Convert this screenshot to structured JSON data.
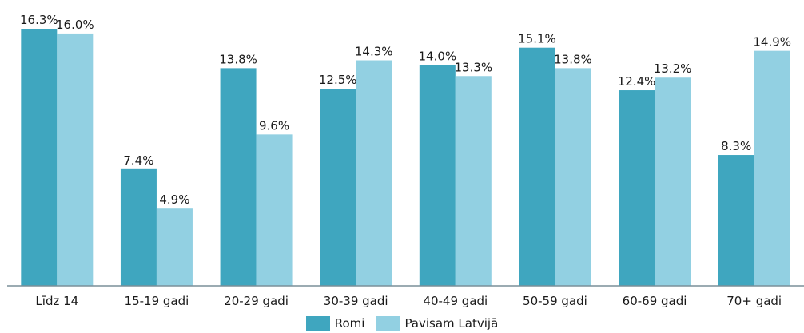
{
  "chart_data": {
    "type": "bar",
    "categories": [
      "Līdz 14",
      "15-19 gadi",
      "20-29 gadi",
      "30-39 gadi",
      "40-49 gadi",
      "50-59 gadi",
      "60-69 gadi",
      "70+ gadi"
    ],
    "series": [
      {
        "name": "Romi",
        "values": [
          16.3,
          7.4,
          13.8,
          12.5,
          14.0,
          15.1,
          12.4,
          8.3
        ],
        "color": "#3fa6bf",
        "labels": [
          "16.3%",
          "7.4%",
          "13.8%",
          "12.5%",
          "14.0%",
          "15.1%",
          "12.4%",
          "8.3%"
        ]
      },
      {
        "name": "Pavisam Latvijā",
        "values": [
          16.0,
          4.9,
          9.6,
          14.3,
          13.3,
          13.8,
          13.2,
          14.9
        ],
        "color": "#92d0e2",
        "labels": [
          "16.0%",
          "4.9%",
          "9.6%",
          "14.3%",
          "13.3%",
          "13.8%",
          "13.2%",
          "14.9%"
        ]
      }
    ],
    "ylim": [
      0,
      16.3
    ],
    "unit": "%",
    "grid": false,
    "legend_position": "bottom-center"
  }
}
